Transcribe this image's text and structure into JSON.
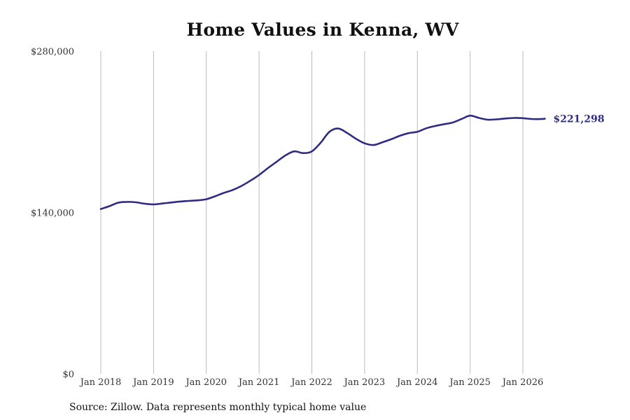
{
  "title": "Home Values in Kenna, WV",
  "source": "Source: Zillow. Data represents monthly typical home value",
  "colors": {
    "line": "#2e2c82",
    "grid": "#bbbbbb",
    "text": "#333333"
  },
  "chart_data": {
    "type": "line",
    "title": "Home Values in Kenna, WV",
    "xlabel": "",
    "ylabel": "",
    "ylim": [
      0,
      280000
    ],
    "xlim": [
      "2018-01",
      "2026-08"
    ],
    "grid": "vertical",
    "y_ticks": [
      {
        "value": 0,
        "label": "$0"
      },
      {
        "value": 140000,
        "label": "$140,000"
      },
      {
        "value": 280000,
        "label": "$280,000"
      }
    ],
    "x_ticks": [
      {
        "value": "2018-01",
        "label": "Jan 2018"
      },
      {
        "value": "2019-01",
        "label": "Jan 2019"
      },
      {
        "value": "2020-01",
        "label": "Jan 2020"
      },
      {
        "value": "2021-01",
        "label": "Jan 2021"
      },
      {
        "value": "2022-01",
        "label": "Jan 2022"
      },
      {
        "value": "2023-01",
        "label": "Jan 2023"
      },
      {
        "value": "2024-01",
        "label": "Jan 2024"
      },
      {
        "value": "2025-01",
        "label": "Jan 2025"
      },
      {
        "value": "2026-01",
        "label": "Jan 2026"
      }
    ],
    "end_label": "$221,298",
    "series": [
      {
        "name": "",
        "x": [
          "2018-01",
          "2018-03",
          "2018-05",
          "2018-07",
          "2018-09",
          "2018-11",
          "2019-01",
          "2019-03",
          "2019-05",
          "2019-07",
          "2019-09",
          "2019-11",
          "2020-01",
          "2020-03",
          "2020-05",
          "2020-07",
          "2020-09",
          "2020-11",
          "2021-01",
          "2021-03",
          "2021-05",
          "2021-07",
          "2021-09",
          "2021-11",
          "2022-01",
          "2022-03",
          "2022-05",
          "2022-07",
          "2022-09",
          "2022-11",
          "2023-01",
          "2023-03",
          "2023-05",
          "2023-07",
          "2023-09",
          "2023-11",
          "2024-01",
          "2024-03",
          "2024-05",
          "2024-07",
          "2024-09",
          "2024-11",
          "2025-01",
          "2025-03",
          "2025-05",
          "2025-07",
          "2025-09",
          "2025-11",
          "2026-01",
          "2026-03",
          "2026-05",
          "2026-06"
        ],
        "values": [
          143000,
          145500,
          148500,
          149200,
          148800,
          147600,
          147000,
          147800,
          148600,
          149500,
          150000,
          150500,
          151500,
          154000,
          157000,
          159500,
          163000,
          167500,
          172500,
          178500,
          184000,
          189500,
          193000,
          191500,
          193000,
          200500,
          210000,
          212800,
          209000,
          204000,
          200000,
          198500,
          200800,
          203500,
          206500,
          208800,
          210000,
          213000,
          215000,
          216500,
          218000,
          221000,
          224000,
          222000,
          220500,
          220800,
          221500,
          222000,
          221800,
          221100,
          221000,
          221298
        ]
      }
    ]
  }
}
